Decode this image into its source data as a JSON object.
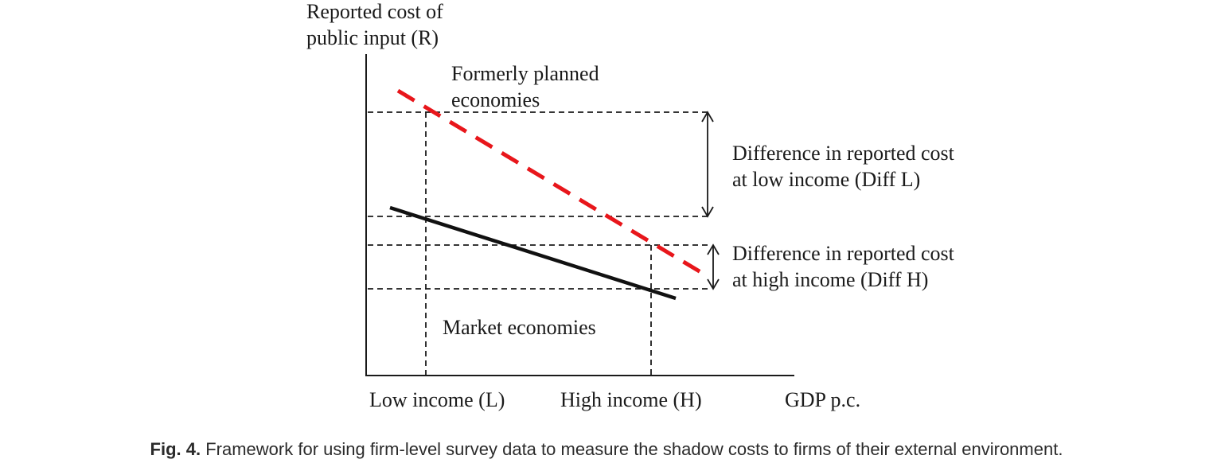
{
  "diagram": {
    "y_axis_label_line1": "Reported cost of",
    "y_axis_label_line2": "public input (R)",
    "x_axis_label": "GDP p.c.",
    "x_tick_low": "Low income (L)",
    "x_tick_high": "High income (H)",
    "planned_label_line1": "Formerly planned",
    "planned_label_line2": "economies",
    "market_label": "Market economies",
    "diff_low_line1": "Difference in reported cost",
    "diff_low_line2": "at low income (Diff L)",
    "diff_high_line1": "Difference in reported cost",
    "diff_high_line2": "at high income (Diff H)",
    "colors": {
      "planned_line": "#e8161b",
      "market_line": "#111111",
      "guides": "#1a1a1a"
    }
  },
  "caption": {
    "label": "Fig. 4.",
    "text": "Framework for using firm-level survey data to measure the shadow costs to firms of their external environment."
  }
}
